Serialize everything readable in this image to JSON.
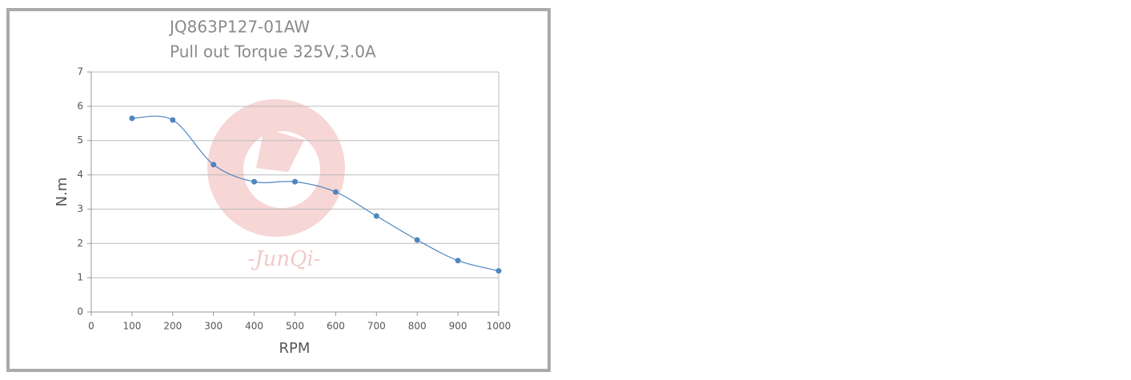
{
  "chart_data": {
    "type": "line",
    "title": "JQ863P127-01AW",
    "subtitle": "Pull out Torque 325V,3.0A",
    "x_label": "RPM",
    "y_label": "N.m",
    "watermark": "-JunQi-",
    "x": [
      100,
      200,
      300,
      400,
      500,
      600,
      700,
      800,
      900,
      1000
    ],
    "series": [
      {
        "color": "#4f86bf",
        "values": [
          5.65,
          5.6,
          4.3,
          3.8,
          3.8,
          3.5,
          2.8,
          2.1,
          1.5,
          1.2
        ]
      }
    ],
    "xlim": [
      0,
      1000
    ],
    "xticks": [
      0,
      100,
      200,
      300,
      400,
      500,
      600,
      700,
      800,
      900,
      1000
    ],
    "ylim": [
      0,
      7
    ],
    "yticks": [
      0,
      1,
      2,
      3,
      4,
      5,
      6,
      7
    ],
    "grid": true,
    "smooth": true
  }
}
